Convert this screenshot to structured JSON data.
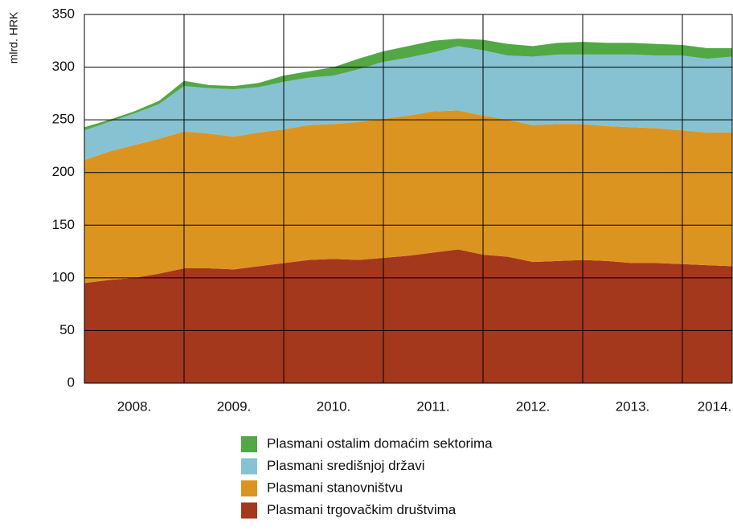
{
  "chart_data": {
    "type": "stacked_area",
    "y_label": "mlrd. HRK",
    "categories": [
      null,
      null,
      "2008.",
      null,
      null,
      null,
      "2009.",
      null,
      null,
      null,
      "2010.",
      null,
      null,
      null,
      "2011.",
      null,
      null,
      null,
      "2012.",
      null,
      null,
      null,
      "2013.",
      null,
      null,
      null,
      "2014."
    ],
    "series": [
      {
        "name": "Plasmani trgovačkim društvima",
        "color": "#a4381d",
        "values": [
          95,
          98,
          100,
          104,
          109,
          109,
          108,
          111,
          114,
          117,
          118,
          117,
          119,
          121,
          124,
          127,
          122,
          120,
          115,
          116,
          117,
          116,
          114,
          114,
          113,
          112,
          111
        ]
      },
      {
        "name": "Plasmani stanovništvu",
        "color": "#dc9420",
        "values": [
          117,
          122,
          126,
          128,
          130,
          128,
          126,
          127,
          127,
          128,
          128,
          131,
          132,
          133,
          134,
          132,
          132,
          130,
          130,
          130,
          129,
          128,
          129,
          128,
          127,
          126,
          127
        ]
      },
      {
        "name": "Plasmani središnjoj državi",
        "color": "#86c2d2",
        "values": [
          28,
          28,
          30,
          33,
          43,
          43,
          45,
          43,
          45,
          45,
          46,
          50,
          54,
          55,
          56,
          61,
          62,
          61,
          65,
          66,
          66,
          68,
          69,
          69,
          71,
          70,
          72
        ]
      },
      {
        "name": "Plasmani ostalim domaćim sektorima",
        "color": "#52a844",
        "values": [
          3,
          2,
          2,
          3,
          5,
          3,
          3,
          4,
          6,
          6,
          8,
          10,
          10,
          11,
          11,
          7,
          10,
          11,
          10,
          11,
          12,
          11,
          11,
          11,
          10,
          10,
          8
        ]
      }
    ],
    "ylim": [
      0,
      350
    ],
    "yticks": [
      0,
      50,
      100,
      150,
      200,
      250,
      300,
      350
    ],
    "grid": true
  }
}
